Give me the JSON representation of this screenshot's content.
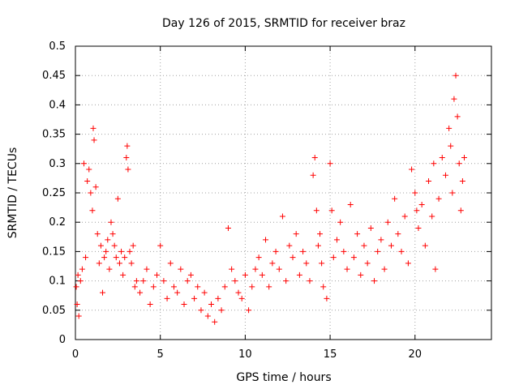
{
  "chart_data": {
    "type": "scatter",
    "title": "Day 126 of 2015, SRMTID for receiver braz",
    "xlabel": "GPS time / hours",
    "ylabel": "SRMTID / TECUs",
    "xlim": [
      0,
      24.5
    ],
    "ylim": [
      0,
      0.5
    ],
    "xticks": [
      "0",
      "5",
      "10",
      "15",
      "20"
    ],
    "yticks": [
      "0",
      "0.05",
      "0.1",
      "0.15",
      "0.2",
      "0.25",
      "0.3",
      "0.35",
      "0.4",
      "0.45",
      "0.5"
    ],
    "grid": true,
    "marker": "plus",
    "marker_color": "#ff0000",
    "x_range_observed": [
      0,
      22.9
    ],
    "series": [
      {
        "name": "SRMTID",
        "points": [
          [
            0.05,
            0.09
          ],
          [
            0.1,
            0.06
          ],
          [
            0.15,
            0.11
          ],
          [
            0.2,
            0.04
          ],
          [
            0.3,
            0.1
          ],
          [
            0.4,
            0.12
          ],
          [
            0.5,
            0.3
          ],
          [
            0.6,
            0.14
          ],
          [
            0.7,
            0.27
          ],
          [
            0.8,
            0.29
          ],
          [
            0.9,
            0.25
          ],
          [
            1.0,
            0.22
          ],
          [
            1.05,
            0.36
          ],
          [
            1.1,
            0.34
          ],
          [
            1.2,
            0.26
          ],
          [
            1.3,
            0.18
          ],
          [
            1.4,
            0.13
          ],
          [
            1.5,
            0.16
          ],
          [
            1.6,
            0.08
          ],
          [
            1.7,
            0.14
          ],
          [
            1.8,
            0.15
          ],
          [
            1.9,
            0.17
          ],
          [
            2.0,
            0.12
          ],
          [
            2.1,
            0.2
          ],
          [
            2.2,
            0.18
          ],
          [
            2.3,
            0.16
          ],
          [
            2.4,
            0.14
          ],
          [
            2.5,
            0.24
          ],
          [
            2.6,
            0.13
          ],
          [
            2.7,
            0.15
          ],
          [
            2.8,
            0.11
          ],
          [
            2.9,
            0.14
          ],
          [
            3.0,
            0.31
          ],
          [
            3.05,
            0.33
          ],
          [
            3.1,
            0.29
          ],
          [
            3.2,
            0.15
          ],
          [
            3.3,
            0.13
          ],
          [
            3.4,
            0.16
          ],
          [
            3.5,
            0.09
          ],
          [
            3.6,
            0.1
          ],
          [
            3.8,
            0.08
          ],
          [
            4.0,
            0.1
          ],
          [
            4.2,
            0.12
          ],
          [
            4.4,
            0.06
          ],
          [
            4.6,
            0.09
          ],
          [
            4.8,
            0.11
          ],
          [
            5.0,
            0.16
          ],
          [
            5.2,
            0.1
          ],
          [
            5.4,
            0.07
          ],
          [
            5.6,
            0.13
          ],
          [
            5.8,
            0.09
          ],
          [
            6.0,
            0.08
          ],
          [
            6.2,
            0.12
          ],
          [
            6.4,
            0.06
          ],
          [
            6.6,
            0.1
          ],
          [
            6.8,
            0.11
          ],
          [
            7.0,
            0.07
          ],
          [
            7.2,
            0.09
          ],
          [
            7.4,
            0.05
          ],
          [
            7.6,
            0.08
          ],
          [
            7.8,
            0.04
          ],
          [
            8.0,
            0.06
          ],
          [
            8.2,
            0.03
          ],
          [
            8.4,
            0.07
          ],
          [
            8.6,
            0.05
          ],
          [
            8.8,
            0.09
          ],
          [
            9.0,
            0.19
          ],
          [
            9.2,
            0.12
          ],
          [
            9.4,
            0.1
          ],
          [
            9.6,
            0.08
          ],
          [
            9.8,
            0.07
          ],
          [
            10.0,
            0.11
          ],
          [
            10.2,
            0.05
          ],
          [
            10.4,
            0.09
          ],
          [
            10.6,
            0.12
          ],
          [
            10.8,
            0.14
          ],
          [
            11.0,
            0.11
          ],
          [
            11.2,
            0.17
          ],
          [
            11.4,
            0.09
          ],
          [
            11.6,
            0.13
          ],
          [
            11.8,
            0.15
          ],
          [
            12.0,
            0.12
          ],
          [
            12.2,
            0.21
          ],
          [
            12.4,
            0.1
          ],
          [
            12.6,
            0.16
          ],
          [
            12.8,
            0.14
          ],
          [
            13.0,
            0.18
          ],
          [
            13.2,
            0.11
          ],
          [
            13.4,
            0.15
          ],
          [
            13.6,
            0.13
          ],
          [
            13.8,
            0.1
          ],
          [
            14.0,
            0.28
          ],
          [
            14.1,
            0.31
          ],
          [
            14.2,
            0.22
          ],
          [
            14.3,
            0.16
          ],
          [
            14.4,
            0.18
          ],
          [
            14.5,
            0.13
          ],
          [
            14.6,
            0.09
          ],
          [
            14.8,
            0.07
          ],
          [
            15.0,
            0.3
          ],
          [
            15.1,
            0.22
          ],
          [
            15.2,
            0.14
          ],
          [
            15.4,
            0.17
          ],
          [
            15.6,
            0.2
          ],
          [
            15.8,
            0.15
          ],
          [
            16.0,
            0.12
          ],
          [
            16.2,
            0.23
          ],
          [
            16.4,
            0.14
          ],
          [
            16.6,
            0.18
          ],
          [
            16.8,
            0.11
          ],
          [
            17.0,
            0.16
          ],
          [
            17.2,
            0.13
          ],
          [
            17.4,
            0.19
          ],
          [
            17.6,
            0.1
          ],
          [
            17.8,
            0.15
          ],
          [
            18.0,
            0.17
          ],
          [
            18.2,
            0.12
          ],
          [
            18.4,
            0.2
          ],
          [
            18.6,
            0.16
          ],
          [
            18.8,
            0.24
          ],
          [
            19.0,
            0.18
          ],
          [
            19.2,
            0.15
          ],
          [
            19.4,
            0.21
          ],
          [
            19.6,
            0.13
          ],
          [
            19.8,
            0.29
          ],
          [
            20.0,
            0.25
          ],
          [
            20.1,
            0.22
          ],
          [
            20.2,
            0.19
          ],
          [
            20.4,
            0.23
          ],
          [
            20.6,
            0.16
          ],
          [
            20.8,
            0.27
          ],
          [
            21.0,
            0.21
          ],
          [
            21.1,
            0.3
          ],
          [
            21.2,
            0.12
          ],
          [
            21.4,
            0.24
          ],
          [
            21.6,
            0.31
          ],
          [
            21.8,
            0.28
          ],
          [
            22.0,
            0.36
          ],
          [
            22.1,
            0.33
          ],
          [
            22.2,
            0.25
          ],
          [
            22.3,
            0.41
          ],
          [
            22.4,
            0.45
          ],
          [
            22.5,
            0.38
          ],
          [
            22.6,
            0.3
          ],
          [
            22.7,
            0.22
          ],
          [
            22.8,
            0.27
          ],
          [
            22.9,
            0.31
          ]
        ]
      }
    ]
  }
}
